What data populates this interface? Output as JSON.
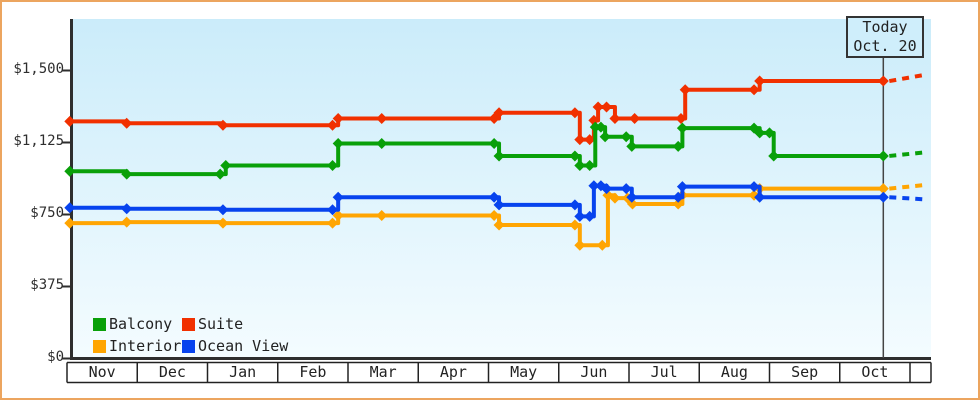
{
  "window": {
    "description": "Cruise cabin price history line chart",
    "colors": {
      "frame_border": "#eca55f",
      "plot_bg_top": "#cbecfa",
      "plot_bg_bottom": "#f4fcff",
      "axis": "#2e2e2e",
      "today_line": "#444444",
      "today_box_fill": "#cfeefb",
      "text": "#222222"
    }
  },
  "chart_data": {
    "type": "line",
    "subtype": "step-price-history-with-forecast",
    "title": "",
    "x_unit": "months since Nov 1 (fractional position)",
    "x_axis": {
      "months": [
        "Nov",
        "Dec",
        "Jan",
        "Feb",
        "Mar",
        "Apr",
        "May",
        "Jun",
        "Jul",
        "Aug",
        "Sep",
        "Oct"
      ],
      "range_months": [
        0,
        12.3
      ]
    },
    "y_axis": {
      "ticks": [
        0,
        375,
        750,
        1125,
        1500
      ],
      "labels": [
        "$0",
        "$375",
        "$750",
        "$1,125",
        "$1,500"
      ],
      "range": [
        0,
        1500
      ],
      "currency": "$"
    },
    "today": {
      "label_line1": "Today",
      "label_line2": "Oct. 20",
      "month_position": 11.62
    },
    "legend_position": "bottom-left inside plot, two rows",
    "grid": false,
    "series": [
      {
        "name": "Balcony",
        "color": "#09a009",
        "points": [
          [
            0.04,
            975
          ],
          [
            0.85,
            960
          ],
          [
            2.18,
            960
          ],
          [
            2.26,
            1005
          ],
          [
            3.78,
            1005
          ],
          [
            3.86,
            1120
          ],
          [
            4.48,
            1120
          ],
          [
            6.08,
            1120
          ],
          [
            6.15,
            1055
          ],
          [
            7.23,
            1055
          ],
          [
            7.3,
            1005
          ],
          [
            7.44,
            1005
          ],
          [
            7.52,
            1205
          ],
          [
            7.6,
            1205
          ],
          [
            7.66,
            1155
          ],
          [
            7.96,
            1155
          ],
          [
            8.04,
            1105
          ],
          [
            8.7,
            1105
          ],
          [
            8.76,
            1200
          ],
          [
            9.78,
            1200
          ],
          [
            9.86,
            1175
          ],
          [
            10.0,
            1175
          ],
          [
            10.06,
            1055
          ],
          [
            11.62,
            1055
          ]
        ],
        "value_today": 1055,
        "forecast_end_value": 1075
      },
      {
        "name": "Suite",
        "color": "#f13000",
        "points": [
          [
            0.04,
            1235
          ],
          [
            0.85,
            1225
          ],
          [
            2.22,
            1215
          ],
          [
            3.78,
            1215
          ],
          [
            3.86,
            1250
          ],
          [
            4.48,
            1250
          ],
          [
            6.08,
            1250
          ],
          [
            6.15,
            1280
          ],
          [
            7.23,
            1280
          ],
          [
            7.3,
            1140
          ],
          [
            7.44,
            1140
          ],
          [
            7.5,
            1240
          ],
          [
            7.56,
            1310
          ],
          [
            7.68,
            1310
          ],
          [
            7.8,
            1250
          ],
          [
            8.08,
            1250
          ],
          [
            8.74,
            1250
          ],
          [
            8.8,
            1400
          ],
          [
            9.78,
            1400
          ],
          [
            9.86,
            1445
          ],
          [
            11.62,
            1445
          ]
        ],
        "value_today": 1445,
        "forecast_end_value": 1480
      },
      {
        "name": "Interior",
        "color": "#ffa502",
        "points": [
          [
            0.04,
            705
          ],
          [
            0.85,
            710
          ],
          [
            2.22,
            705
          ],
          [
            3.78,
            705
          ],
          [
            3.86,
            745
          ],
          [
            4.48,
            745
          ],
          [
            6.08,
            745
          ],
          [
            6.15,
            695
          ],
          [
            7.23,
            695
          ],
          [
            7.3,
            590
          ],
          [
            7.62,
            590
          ],
          [
            7.7,
            850
          ],
          [
            7.8,
            835
          ],
          [
            7.98,
            835
          ],
          [
            8.05,
            805
          ],
          [
            8.7,
            805
          ],
          [
            8.76,
            850
          ],
          [
            9.78,
            850
          ],
          [
            9.86,
            885
          ],
          [
            11.62,
            885
          ]
        ],
        "value_today": 885,
        "forecast_end_value": 905
      },
      {
        "name": "Ocean View",
        "color": "#0743ee",
        "points": [
          [
            0.04,
            785
          ],
          [
            0.85,
            780
          ],
          [
            2.22,
            775
          ],
          [
            3.78,
            775
          ],
          [
            3.86,
            840
          ],
          [
            6.08,
            840
          ],
          [
            6.15,
            800
          ],
          [
            7.23,
            800
          ],
          [
            7.3,
            740
          ],
          [
            7.44,
            740
          ],
          [
            7.5,
            900
          ],
          [
            7.6,
            900
          ],
          [
            7.68,
            885
          ],
          [
            7.96,
            885
          ],
          [
            8.04,
            840
          ],
          [
            8.7,
            840
          ],
          [
            8.76,
            895
          ],
          [
            9.78,
            895
          ],
          [
            9.86,
            840
          ],
          [
            11.62,
            840
          ]
        ],
        "value_today": 840,
        "forecast_end_value": 828
      }
    ]
  }
}
